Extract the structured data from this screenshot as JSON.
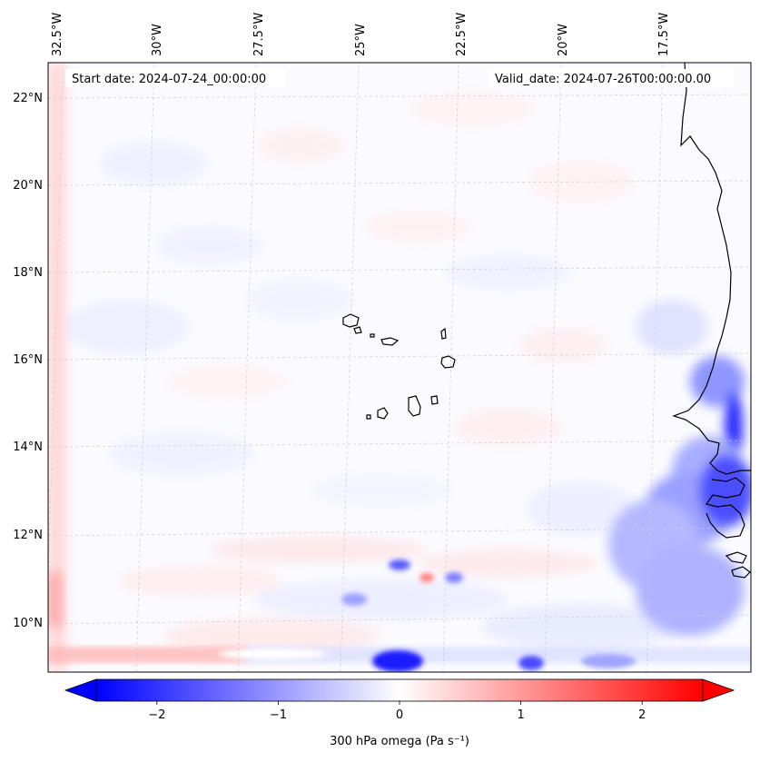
{
  "map": {
    "start_date_label": "Start date: 2024-07-24_00:00:00",
    "valid_date_label": "Valid_date: 2024-07-26T00:00:00.00",
    "lon_labels": [
      "32.5°W",
      "30°W",
      "27.5°W",
      "25°W",
      "22.5°W",
      "20°W",
      "17.5°W"
    ],
    "lat_labels": [
      "22°N",
      "20°N",
      "18°N",
      "16°N",
      "14°N",
      "12°N",
      "10°N"
    ],
    "coastline_color": "#000000",
    "gridline_color": "#cccccc"
  },
  "colorbar": {
    "label": "300 hPa omega (Pa s⁻¹)",
    "ticks": [
      {
        "value": -2,
        "label": "−2"
      },
      {
        "value": -1,
        "label": "−1"
      },
      {
        "value": 0,
        "label": "0"
      },
      {
        "value": 1,
        "label": "1"
      },
      {
        "value": 2,
        "label": "2"
      }
    ],
    "range": [
      -2.5,
      2.5
    ],
    "extend": "both",
    "colormap": "bwr",
    "low_color": "#0000ff",
    "mid_color": "#ffffff",
    "high_color": "#ff0000"
  }
}
